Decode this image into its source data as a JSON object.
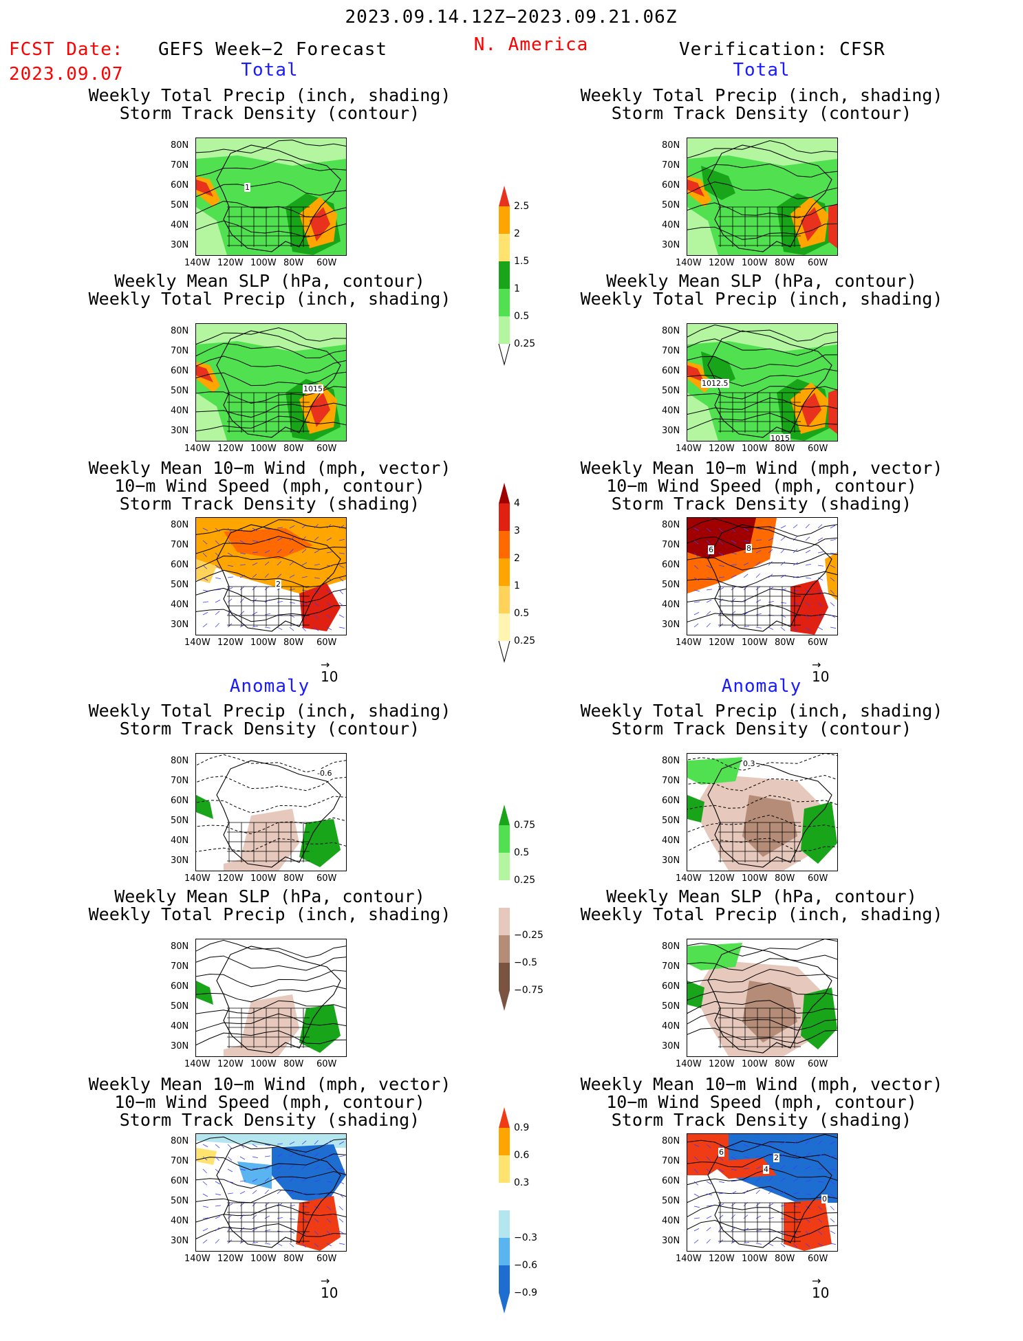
{
  "header": {
    "period": "2023.09.14.12Z−2023.09.21.06Z",
    "region": "N. America",
    "fcst_label": "FCST Date:",
    "fcst_date": "2023.09.07",
    "left_model": "GEFS Week−2 Forecast",
    "right_model": "Verification: CFSR"
  },
  "sections": {
    "total": "Total",
    "anomaly": "Anomaly"
  },
  "titles": {
    "precip_storm": [
      "Weekly Total Precip (inch, shading)",
      "Storm Track Density (contour)"
    ],
    "slp_precip": [
      "Weekly Mean SLP (hPa, contour)",
      "Weekly Total Precip (inch, shading)"
    ],
    "wind": [
      "Weekly Mean 10−m Wind (mph, vector)",
      "10−m Wind Speed (mph, contour)",
      "Storm Track Density (shading)"
    ]
  },
  "axes": {
    "lat": [
      "80N",
      "70N",
      "60N",
      "50N",
      "40N",
      "30N"
    ],
    "lon": [
      "140W",
      "120W",
      "100W",
      "80W",
      "60W"
    ],
    "vector_ref": "10"
  },
  "map_labels": {
    "f_precip_contour": "1",
    "f_slp_contour": "1015",
    "c_slp_contour_a": "1012.5",
    "c_slp_contour_b": "1015",
    "f_wind_contour": "2",
    "c_wind_contour_a": "6",
    "c_wind_contour_b": "8",
    "f_anom_contour": "-0.6",
    "c_anom_contour": "0.3",
    "c_wind_anom_a": "6",
    "c_wind_anom_b": "2",
    "c_wind_anom_c": "4",
    "c_wind_anom_d": "0"
  },
  "colorbars": {
    "precip": {
      "labels": [
        "2.5",
        "2",
        "1.5",
        "1",
        "0.5",
        "0.25"
      ],
      "colors": [
        "#e8321e",
        "#ffa500",
        "#ffe36e",
        "#19a519",
        "#50e050",
        "#b4f5a0"
      ]
    },
    "storm": {
      "labels": [
        "4",
        "3",
        "2",
        "1",
        "0.5",
        "0.25"
      ],
      "colors": [
        "#a00000",
        "#e02010",
        "#ff6a00",
        "#ffa500",
        "#ffd25a",
        "#fff4b0"
      ]
    },
    "precip_anom": {
      "labels": [
        "0.75",
        "0.5",
        "0.25",
        "−0.25",
        "−0.5",
        "−0.75"
      ],
      "colors": [
        "#19a519",
        "#50e050",
        "#b4f5a0",
        "#ffffff",
        "#e6c8bc",
        "#b48c78",
        "#7a5440"
      ]
    },
    "storm_anom": {
      "labels": [
        "0.9",
        "0.6",
        "0.3",
        "−0.3",
        "−0.6",
        "−0.9"
      ],
      "colors": [
        "#f03c14",
        "#ffa500",
        "#ffe36e",
        "#ffffff",
        "#b4e6f0",
        "#5ab4f0",
        "#1e6ed2"
      ]
    }
  }
}
